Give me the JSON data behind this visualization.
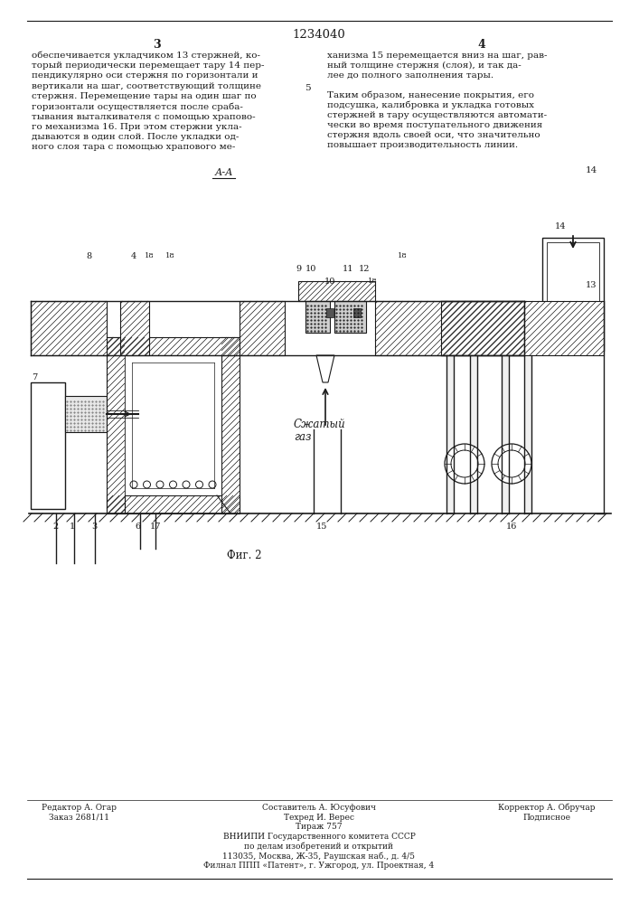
{
  "patent_number": "1234040",
  "page_col_left": "3",
  "page_col_right": "4",
  "text_left_top": "обеспечивается укладчиком 13 стержней, ко-\nторый периодически перемещает тару 14 пер-\nпендикулярно оси стержня по горизонтали и\nвертикали на шаг, соответствующий толщине\nстержня. Перемещение тары на один шаг по\nгоризонтали осуществляется после сраба-\nтывания выталкивателя с помощью храпово-\nго механизма 16. При этом стержни укла-\nдываются в один слой. После укладки од-\nного слоя тара с помощью храпового ме-",
  "text_right_top": "ханизма 15 перемещается вниз на шаг, рав-\nный толщине стержня (слоя), и так да-\nлее до полного заполнения тары.",
  "paragraph_num": "5",
  "text_right_p2": "Таким образом, нанесение покрытия, его\nподсушка, калибровка и укладка готовых\nстержней в тару осуществляются автомати-\nчески во время поступательного движения\nстержня вдоль своей оси, что значительно\nповышает производительность линии.",
  "section_label": "А-А",
  "fig_label": "Фиг. 2",
  "caption_left_col1": "Редактор А. Огар",
  "caption_left_col2": "Заказ 2681/11",
  "caption_mid_col1": "Составитель А. Юсуфович",
  "caption_mid_col2": "Техред И. Верес",
  "caption_mid_col3": "Тираж 757",
  "caption_mid_col4": "ВНИИПИ Государственного комитета СССР",
  "caption_mid_col5": "по делам изобретений и открытий",
  "caption_mid_col6": "113035, Москва, Ж-35, Раушская наб., д. 4/5",
  "caption_mid_col7": "Филнал ППП «Патент», г. Ужгород, ул. Проектная, 4",
  "caption_right_col1": "Корректор А. Обручар",
  "caption_right_col2": "Подписное",
  "bg_color": "#ffffff",
  "text_color": "#1a1a1a",
  "font_size_body": 7.5,
  "font_size_small": 6.5,
  "font_size_patent": 9.5
}
